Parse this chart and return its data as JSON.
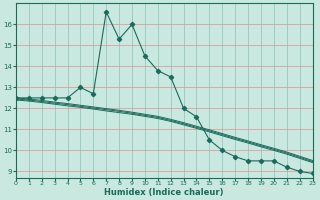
{
  "xlabel": "Humidex (Indice chaleur)",
  "bg_color": "#c8e8e0",
  "line_color": "#1a6b5a",
  "xlim": [
    0,
    23
  ],
  "ylim": [
    9,
    17
  ],
  "yticks": [
    9,
    10,
    11,
    12,
    13,
    14,
    15,
    16
  ],
  "xticks": [
    0,
    1,
    2,
    3,
    4,
    5,
    6,
    7,
    8,
    9,
    10,
    11,
    12,
    13,
    14,
    15,
    16,
    17,
    18,
    19,
    20,
    21,
    22,
    23
  ],
  "main_x": [
    0,
    1,
    2,
    3,
    4,
    5,
    6,
    7,
    8,
    9,
    10,
    11,
    12,
    13,
    14,
    15,
    16,
    17,
    18,
    19,
    20,
    21,
    22,
    23
  ],
  "main_y": [
    12.5,
    12.5,
    12.5,
    12.5,
    12.5,
    13.0,
    12.7,
    16.6,
    15.3,
    16.0,
    14.5,
    13.8,
    13.5,
    12.0,
    11.6,
    10.5,
    10.0,
    9.7,
    9.5,
    9.5,
    9.5,
    9.2,
    9.0,
    8.9
  ],
  "line2_y": [
    12.4,
    12.35,
    12.28,
    12.2,
    12.12,
    12.05,
    11.97,
    11.88,
    11.8,
    11.72,
    11.62,
    11.52,
    11.38,
    11.22,
    11.05,
    10.88,
    10.7,
    10.52,
    10.35,
    10.17,
    10.0,
    9.82,
    9.62,
    9.42
  ],
  "line3_y": [
    12.45,
    12.4,
    12.33,
    12.25,
    12.18,
    12.1,
    12.02,
    11.94,
    11.86,
    11.77,
    11.67,
    11.57,
    11.43,
    11.27,
    11.1,
    10.93,
    10.75,
    10.57,
    10.4,
    10.22,
    10.05,
    9.87,
    9.67,
    9.47
  ],
  "line4_y": [
    12.5,
    12.45,
    12.38,
    12.3,
    12.23,
    12.15,
    12.07,
    11.99,
    11.91,
    11.82,
    11.72,
    11.62,
    11.48,
    11.32,
    11.15,
    10.98,
    10.8,
    10.62,
    10.45,
    10.27,
    10.1,
    9.92,
    9.72,
    9.52
  ]
}
